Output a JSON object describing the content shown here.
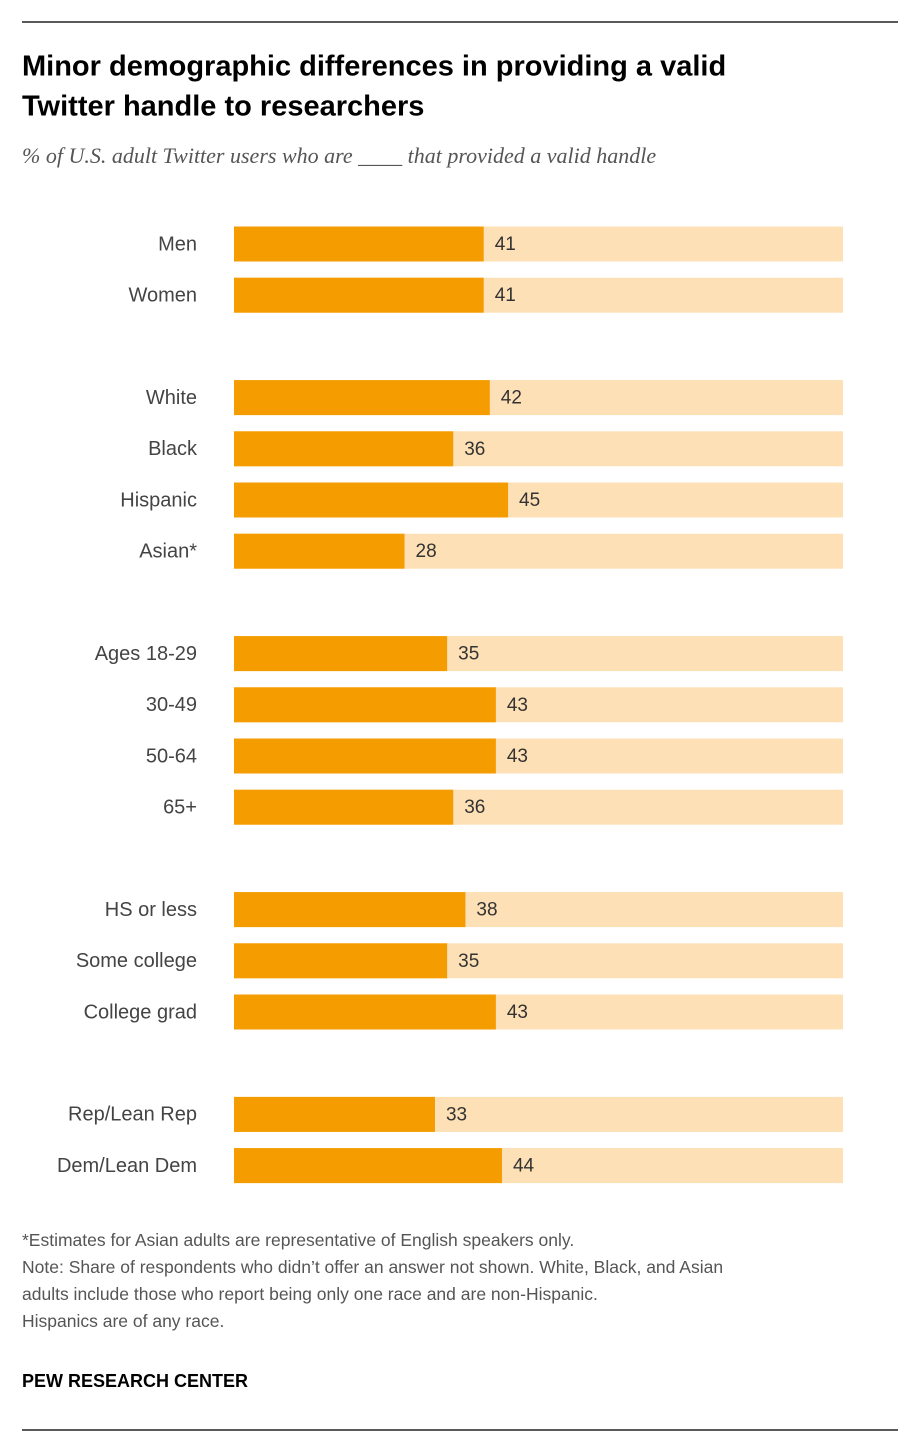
{
  "chart_data": {
    "type": "bar",
    "orientation": "horizontal",
    "title": [
      "Minor demographic differences in providing a valid",
      "Twitter handle to researchers"
    ],
    "subtitle": "% of U.S. adult Twitter users who are ____ that provided a valid handle",
    "categories": [
      "Men",
      "Women",
      null,
      "White",
      "Black",
      "Hispanic",
      "Asian*",
      null,
      "Ages 18-29",
      "30-49",
      "50-64",
      "65+",
      null,
      "HS or less",
      "Some college",
      "College grad",
      null,
      "Rep/Lean Rep",
      "Dem/Lean Dem"
    ],
    "values": [
      41,
      41,
      null,
      42,
      36,
      45,
      28,
      null,
      35,
      43,
      43,
      36,
      null,
      38,
      35,
      43,
      null,
      33,
      44
    ],
    "color": "#f59c00",
    "background_color": "#fde0b5",
    "xlim": [
      0,
      100
    ],
    "notes": [
      "*Estimates for Asian adults are representative of English speakers only.",
      "Note: Share of respondents who didn’t offer an answer not shown. White, Black, and Asian",
      "adults include those who report being only one race and are non-Hispanic.",
      "Hispanics are of any race."
    ],
    "source": "PEW RESEARCH CENTER"
  }
}
